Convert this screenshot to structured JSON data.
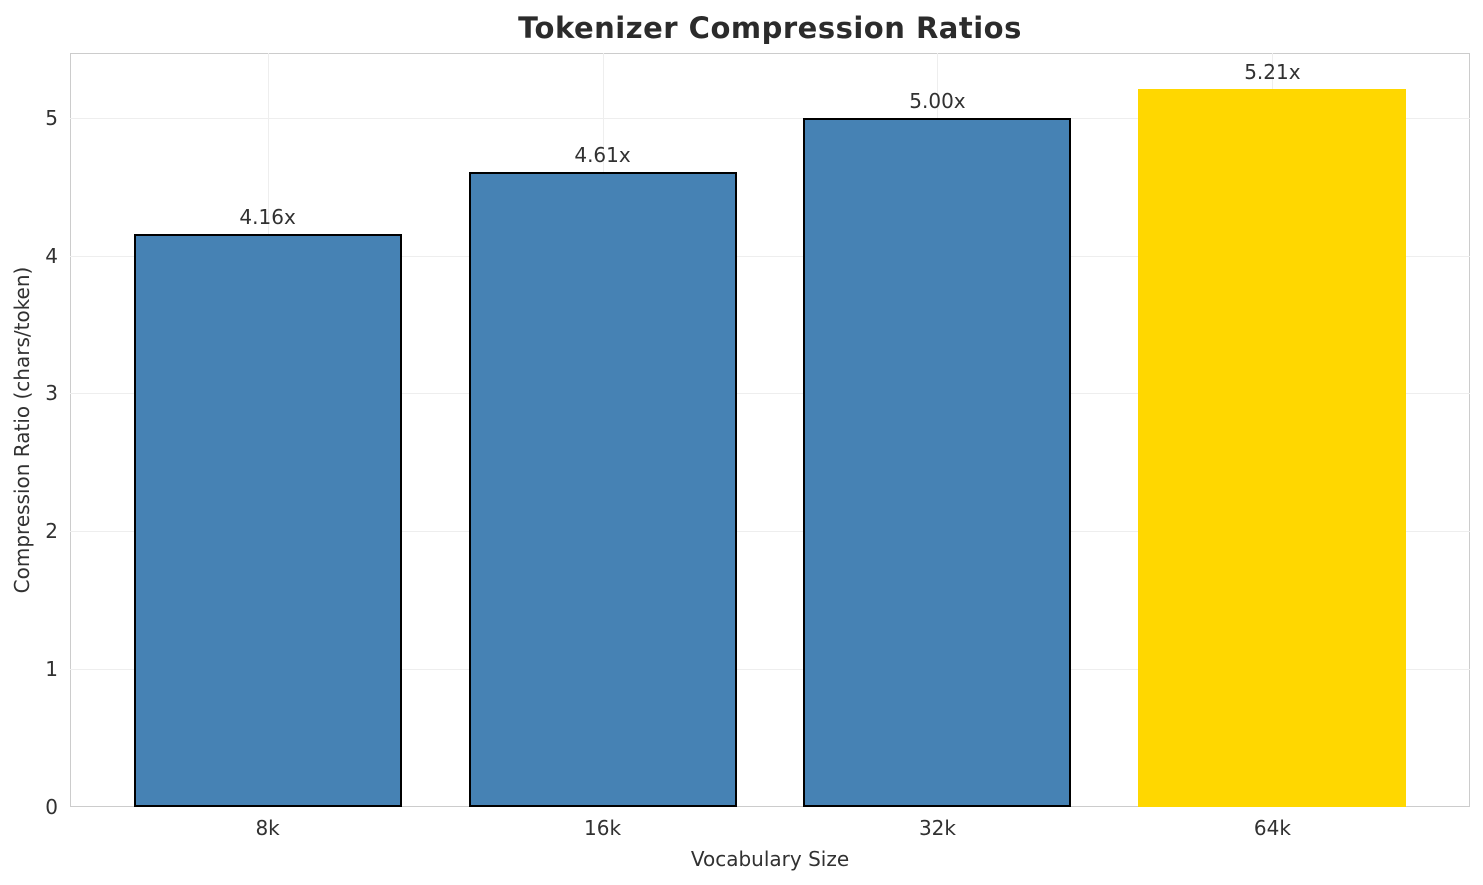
{
  "chart_data": {
    "type": "bar",
    "title": "Tokenizer Compression Ratios",
    "xlabel": "Vocabulary Size",
    "ylabel": "Compression Ratio (chars/token)",
    "categories": [
      "8k",
      "16k",
      "32k",
      "64k"
    ],
    "values": [
      4.16,
      4.61,
      5.0,
      5.21
    ],
    "value_labels": [
      "4.16x",
      "4.61x",
      "5.00x",
      "5.21x"
    ],
    "bar_colors": [
      "#4682B4",
      "#4682B4",
      "#4682B4",
      "#FFD700"
    ],
    "bar_edge_colors": [
      "#000000",
      "#000000",
      "#000000",
      "none"
    ],
    "yticks": [
      "0",
      "1",
      "2",
      "3",
      "4",
      "5"
    ],
    "ylim": [
      0,
      5.47
    ],
    "grid": true,
    "legend": null
  }
}
